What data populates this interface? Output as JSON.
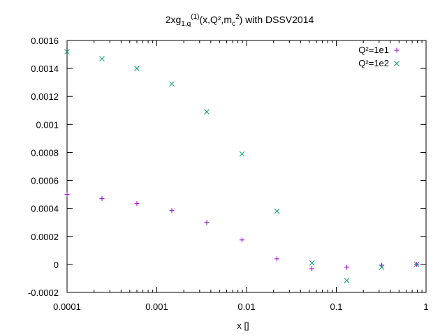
{
  "chart_data": {
    "type": "scatter",
    "title_parts": {
      "prefix": "2xg",
      "sub": "1,q",
      "sup": "(1)",
      "mid": "(x,Q²,m",
      "sub2": "c",
      "sup2": "2",
      "suffix": ") with DSSV2014"
    },
    "xlabel": "x []",
    "ylabel": "",
    "xscale": "log",
    "xlim": [
      0.0001,
      1
    ],
    "ylim": [
      -0.0002,
      0.0016
    ],
    "x_ticks": [
      {
        "value": 0.0001,
        "label": "0.0001"
      },
      {
        "value": 0.001,
        "label": "0.001"
      },
      {
        "value": 0.01,
        "label": "0.01"
      },
      {
        "value": 0.1,
        "label": "0.1"
      },
      {
        "value": 1,
        "label": "1"
      }
    ],
    "y_ticks": [
      {
        "value": -0.0002,
        "label": "-0.0002"
      },
      {
        "value": 0,
        "label": "0"
      },
      {
        "value": 0.0002,
        "label": "0.0002"
      },
      {
        "value": 0.0004,
        "label": "0.0004"
      },
      {
        "value": 0.0006,
        "label": "0.0006"
      },
      {
        "value": 0.0008,
        "label": "0.0008"
      },
      {
        "value": 0.001,
        "label": "0.001"
      },
      {
        "value": 0.0012,
        "label": "0.0012"
      },
      {
        "value": 0.0014,
        "label": "0.0014"
      },
      {
        "value": 0.0016,
        "label": "0.0016"
      }
    ],
    "grid": false,
    "legend_position": "top-right",
    "series": [
      {
        "name": "Q²=1e1",
        "marker": "plus",
        "color": "#9400d3",
        "x": [
          0.0001,
          0.000245,
          0.0006,
          0.00147,
          0.0036,
          0.0089,
          0.0218,
          0.0535,
          0.131,
          0.321,
          0.787
        ],
        "y": [
          0.0005,
          0.00047,
          0.000435,
          0.000385,
          0.0003,
          0.000175,
          4e-05,
          -3e-05,
          -2e-05,
          -5e-06,
          0.0
        ]
      },
      {
        "name": "Q²=1e2",
        "marker": "cross",
        "color": "#009e73",
        "x": [
          0.0001,
          0.000245,
          0.0006,
          0.00147,
          0.0036,
          0.0089,
          0.0218,
          0.0535,
          0.131,
          0.321,
          0.787
        ],
        "y": [
          0.00152,
          0.00147,
          0.0014,
          0.00129,
          0.00109,
          0.00079,
          0.00038,
          1e-05,
          -0.000115,
          -2e-05,
          0.0
        ]
      }
    ]
  }
}
